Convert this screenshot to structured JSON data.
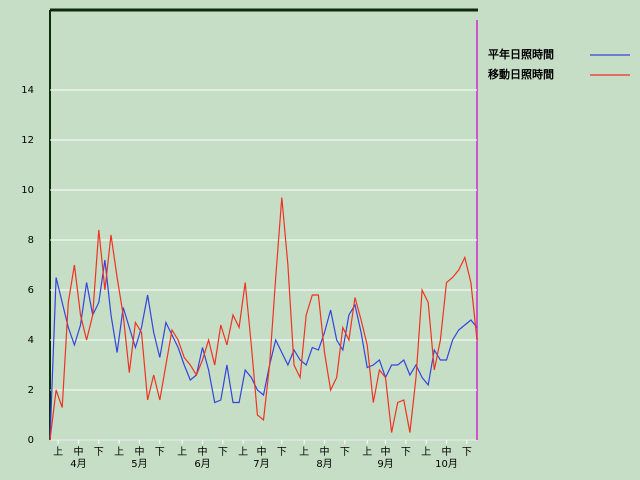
{
  "chart_data": {
    "type": "line",
    "x": [
      0,
      3,
      6,
      9,
      12,
      15,
      18,
      21,
      24,
      27,
      30,
      33,
      36,
      39,
      42,
      45,
      48,
      51,
      54,
      57,
      60,
      63,
      66,
      69,
      72,
      75,
      78,
      81,
      84,
      87,
      90,
      93,
      96,
      99,
      102,
      105,
      108,
      111,
      114,
      117,
      120,
      123,
      126,
      129,
      132,
      135,
      138,
      141,
      144,
      147,
      150,
      153,
      156,
      159,
      162,
      165,
      168,
      171,
      174,
      177,
      180,
      183,
      186,
      189,
      192,
      195,
      198,
      201,
      204,
      207,
      210
    ],
    "series": [
      {
        "name": "平年日照時間",
        "color": "#3344dd",
        "values": [
          0,
          6.5,
          5.5,
          4.5,
          3.8,
          4.6,
          6.3,
          5.0,
          5.5,
          7.2,
          5.0,
          3.5,
          5.3,
          4.5,
          3.7,
          4.5,
          5.8,
          4.3,
          3.3,
          4.7,
          4.2,
          3.7,
          3.0,
          2.4,
          2.6,
          3.7,
          2.8,
          1.5,
          1.6,
          3.0,
          1.5,
          1.5,
          2.8,
          2.5,
          2.0,
          1.8,
          3.0,
          4.0,
          3.5,
          3.0,
          3.6,
          3.2,
          3.0,
          3.7,
          3.6,
          4.3,
          5.2,
          4.0,
          3.6,
          5.0,
          5.4,
          4.3,
          2.9,
          3.0,
          3.2,
          2.5,
          3.0,
          3.0,
          3.2,
          2.6,
          3.0,
          2.5,
          2.2,
          3.6,
          3.2,
          3.2,
          4.0,
          4.4,
          4.6,
          4.8,
          4.5
        ]
      },
      {
        "name": "移動日照時間",
        "color": "#ee3322",
        "values": [
          0,
          2.0,
          1.3,
          5.5,
          7.0,
          5.0,
          4.0,
          5.0,
          8.4,
          6.0,
          8.2,
          6.5,
          5.0,
          2.7,
          4.7,
          4.3,
          1.6,
          2.6,
          1.6,
          3.0,
          4.4,
          4.0,
          3.3,
          3.0,
          2.6,
          3.2,
          4.0,
          3.0,
          4.6,
          3.8,
          5.0,
          4.5,
          6.3,
          3.8,
          1.0,
          0.8,
          3.0,
          6.5,
          9.7,
          7.0,
          3.0,
          2.5,
          5.0,
          5.8,
          5.8,
          3.5,
          2.0,
          2.5,
          4.5,
          4.0,
          5.7,
          4.8,
          3.8,
          1.5,
          2.8,
          2.5,
          0.3,
          1.5,
          1.6,
          0.3,
          2.5,
          6.0,
          5.5,
          2.8,
          4.0,
          6.3,
          6.5,
          6.8,
          7.3,
          6.3,
          4.0
        ]
      }
    ],
    "xlim": [
      0,
      210
    ],
    "xticks": [
      {
        "value": 4,
        "label": "上"
      },
      {
        "value": 14,
        "label": "中"
      },
      {
        "value": 24,
        "label": "下"
      },
      {
        "value": 34,
        "label": "上"
      },
      {
        "value": 44,
        "label": "中"
      },
      {
        "value": 54,
        "label": "下"
      },
      {
        "value": 65,
        "label": "上"
      },
      {
        "value": 75,
        "label": "中"
      },
      {
        "value": 85,
        "label": "下"
      },
      {
        "value": 95,
        "label": "上"
      },
      {
        "value": 104,
        "label": "中"
      },
      {
        "value": 114,
        "label": "下"
      },
      {
        "value": 125,
        "label": "上"
      },
      {
        "value": 135,
        "label": "中"
      },
      {
        "value": 145,
        "label": "下"
      },
      {
        "value": 156,
        "label": "上"
      },
      {
        "value": 165,
        "label": "中"
      },
      {
        "value": 175,
        "label": "下"
      },
      {
        "value": 185,
        "label": "上"
      },
      {
        "value": 195,
        "label": "中"
      },
      {
        "value": 205,
        "label": "下"
      }
    ],
    "month_ticks": [
      {
        "value": 14,
        "label": "4月"
      },
      {
        "value": 44,
        "label": "5月"
      },
      {
        "value": 75,
        "label": "6月"
      },
      {
        "value": 104,
        "label": "7月"
      },
      {
        "value": 135,
        "label": "8月"
      },
      {
        "value": 165,
        "label": "9月"
      },
      {
        "value": 195,
        "label": "10月"
      }
    ],
    "ylim": [
      0,
      17.2
    ],
    "yticks": [
      0,
      2,
      4,
      6,
      8,
      10,
      12,
      14
    ],
    "grid": true,
    "legend": "right"
  }
}
